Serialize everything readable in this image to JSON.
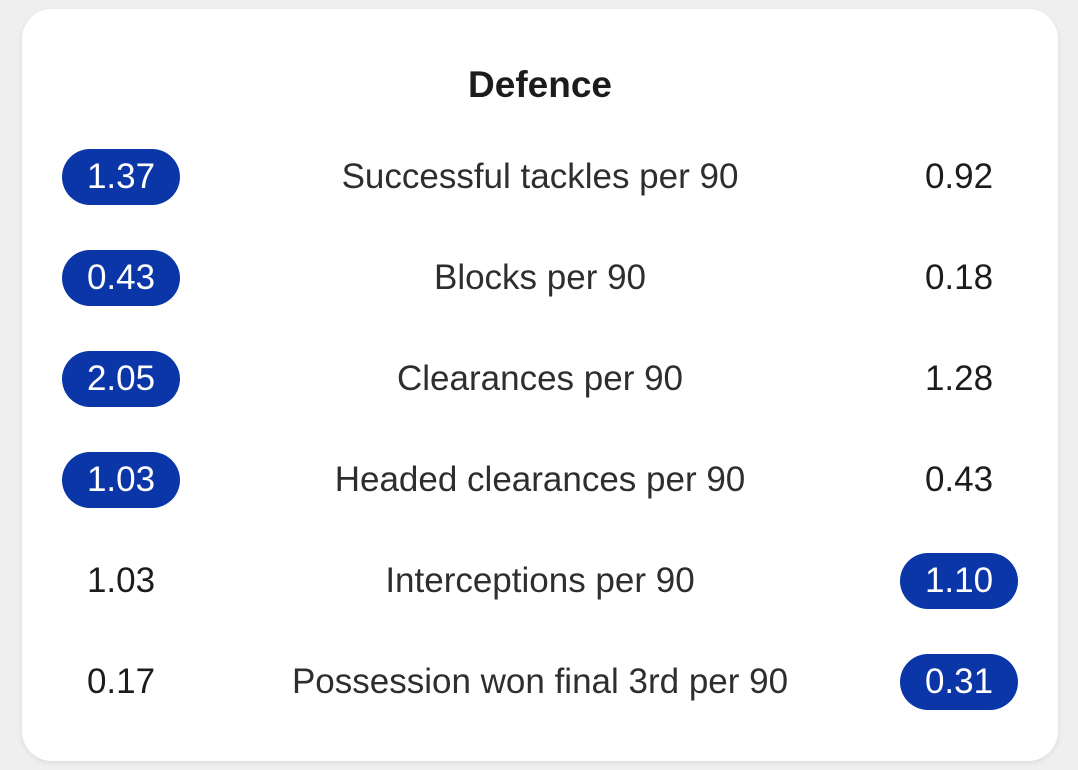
{
  "title": "Defence",
  "accent_color": "#0a36a8",
  "rows": [
    {
      "label": "Successful tackles per 90",
      "left": "1.37",
      "right": "0.92",
      "highlight": "left"
    },
    {
      "label": "Blocks per 90",
      "left": "0.43",
      "right": "0.18",
      "highlight": "left"
    },
    {
      "label": "Clearances per 90",
      "left": "2.05",
      "right": "1.28",
      "highlight": "left"
    },
    {
      "label": "Headed clearances per 90",
      "left": "1.03",
      "right": "0.43",
      "highlight": "left"
    },
    {
      "label": "Interceptions per 90",
      "left": "1.03",
      "right": "1.10",
      "highlight": "right"
    },
    {
      "label": "Possession won final 3rd per 90",
      "left": "0.17",
      "right": "0.31",
      "highlight": "right"
    }
  ]
}
